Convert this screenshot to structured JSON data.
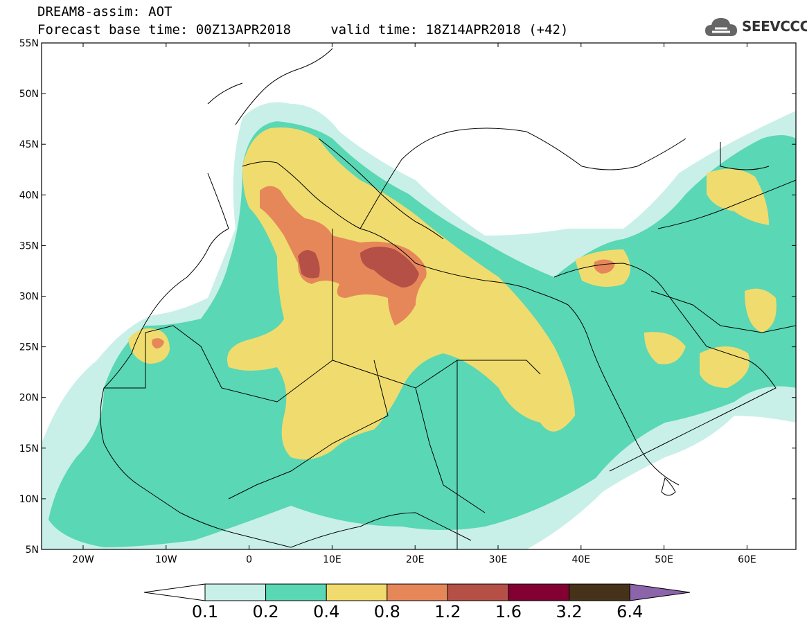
{
  "header": {
    "line1": "DREAM8-assim: AOT",
    "line2": "Forecast base time: 00Z13APR2018     valid time: 18Z14APR2018 (+42)"
  },
  "logo": {
    "text": "SEEVCCC",
    "icon": "cloud-icon"
  },
  "map": {
    "lat_labels": [
      "55N",
      "50N",
      "45N",
      "40N",
      "35N",
      "30N",
      "25N",
      "20N",
      "15N",
      "10N",
      "5N"
    ],
    "lon_labels": [
      "20W",
      "10W",
      "0",
      "10E",
      "20E",
      "30E",
      "40E",
      "50E",
      "60E"
    ]
  },
  "colorbar": {
    "labels": [
      "0.1",
      "0.2",
      "0.4",
      "0.8",
      "1.2",
      "1.6",
      "3.2",
      "6.4"
    ],
    "colors": [
      "#c8f0e8",
      "#5ad7b4",
      "#f0dc6e",
      "#e6875a",
      "#b45046",
      "#820032",
      "#463219",
      "#8c64aa"
    ],
    "under_color": "#ffffff"
  }
}
